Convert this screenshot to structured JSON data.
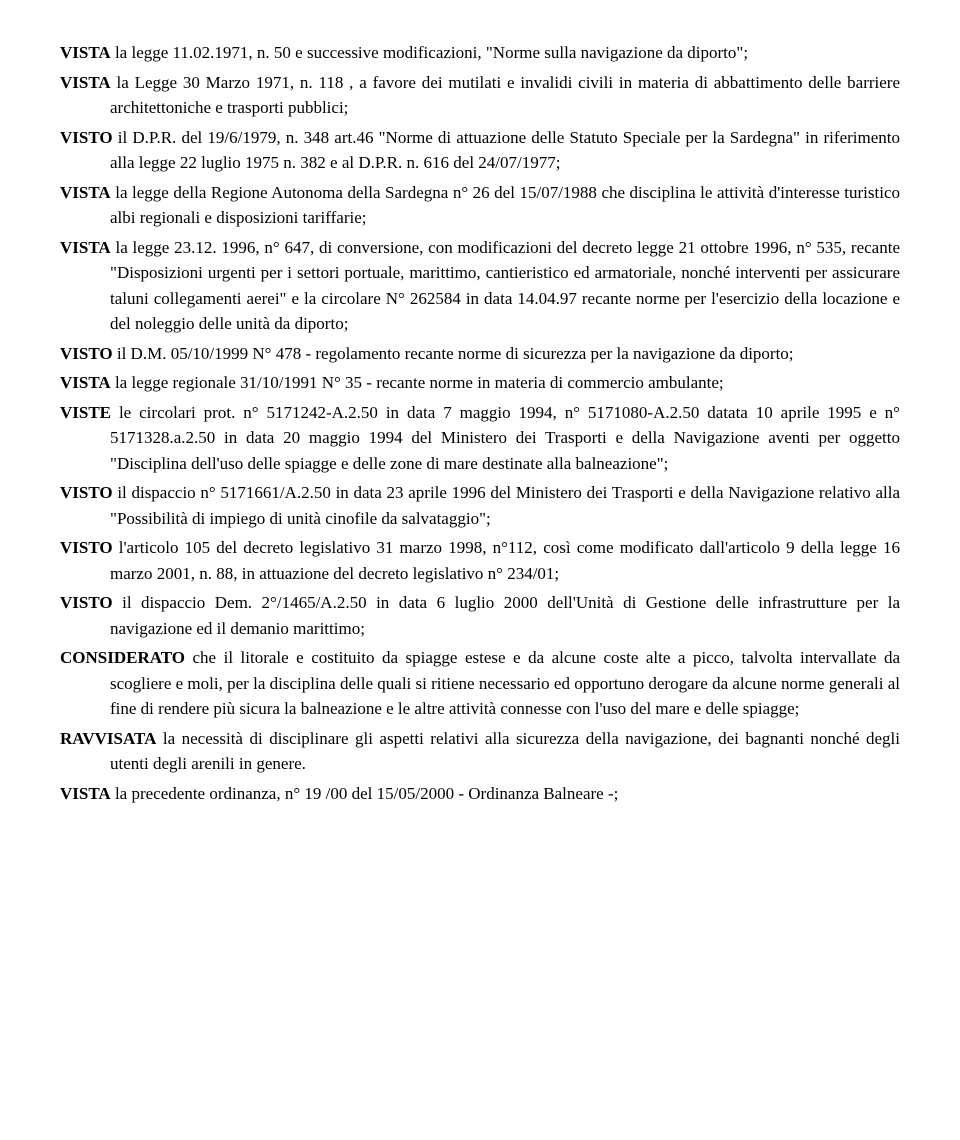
{
  "paragraphs": [
    {
      "lead": "VISTA",
      "text": " la legge 11.02.1971, n. 50 e successive modificazioni, \"Norme sulla navigazione da diporto\";"
    },
    {
      "lead": "VISTA",
      "text": " la Legge 30 Marzo 1971, n. 118 , a favore dei mutilati e invalidi civili in materia di abbattimento delle barriere architettoniche e trasporti pubblici;"
    },
    {
      "lead": "VISTO",
      "text": " il D.P.R. del 19/6/1979, n. 348 art.46 \"Norme di attuazione delle Statuto Speciale per la Sardegna\" in riferimento alla legge 22 luglio 1975 n. 382 e al D.P.R. n. 616 del 24/07/1977;"
    },
    {
      "lead": "VISTA",
      "text": " la legge della Regione Autonoma della Sardegna n° 26 del 15/07/1988 che disciplina le attività d'interesse turistico albi regionali e disposizioni tariffarie;"
    },
    {
      "lead": "VISTA",
      "text": " la legge  23.12. 1996, n° 647, di conversione, con modificazioni del decreto legge 21 ottobre 1996, n° 535, recante \"Disposizioni urgenti per i settori portuale, marittimo, cantieristico ed armatoriale, nonché interventi per assicurare taluni collegamenti aerei\" e la circolare N° 262584 in data 14.04.97 recante norme per l'esercizio della locazione e del noleggio delle unità da diporto;"
    },
    {
      "lead": "VISTO",
      "text": " il D.M. 05/10/1999 N° 478 - regolamento recante norme di sicurezza per la navigazione da diporto;"
    },
    {
      "lead": "VISTA",
      "text": " la legge regionale 31/10/1991 N° 35 - recante norme in materia di commercio ambulante;"
    },
    {
      "lead": "VISTE",
      "text": " le circolari prot. n° 5171242-A.2.50 in data 7 maggio 1994, n° 5171080-A.2.50 datata 10 aprile 1995 e n° 5171328.a.2.50 in data 20 maggio 1994 del Ministero dei Trasporti e della Navigazione aventi per oggetto \"Disciplina dell'uso delle spiagge e delle zone di mare destinate alla balneazione\";"
    },
    {
      "lead": "VISTO",
      "text": " il dispaccio n° 5171661/A.2.50 in data 23 aprile 1996 del Ministero dei Trasporti e della Navigazione relativo alla \"Possibilità di impiego di unità cinofile da salvataggio\";"
    },
    {
      "lead": "VISTO",
      "text": " l'articolo 105 del decreto legislativo 31 marzo 1998, n°112, così come modificato dall'articolo 9 della legge 16 marzo 2001, n. 88, in attuazione del decreto legislativo n° 234/01;"
    },
    {
      "lead": "VISTO",
      "text": " il dispaccio Dem. 2°/1465/A.2.50 in data 6 luglio 2000 dell'Unità di Gestione delle infrastrutture per la navigazione ed il demanio marittimo;"
    },
    {
      "lead": "CONSIDERATO",
      "text": " che il litorale e costituito da spiagge estese e da alcune coste alte a picco, talvolta intervallate da scogliere e moli, per la disciplina delle quali si ritiene necessario ed opportuno derogare  da alcune norme generali al fine di rendere più sicura la balneazione e le altre attività connesse con l'uso del mare e delle spiagge;"
    },
    {
      "lead": "RAVVISATA",
      "text": " la necessità di disciplinare gli aspetti relativi alla sicurezza della navigazione, dei bagnanti nonché degli utenti degli arenili in genere."
    },
    {
      "lead": "VISTA",
      "text": " la precedente ordinanza, n° 19 /00 del 15/05/2000 - Ordinanza Balneare -;"
    }
  ]
}
